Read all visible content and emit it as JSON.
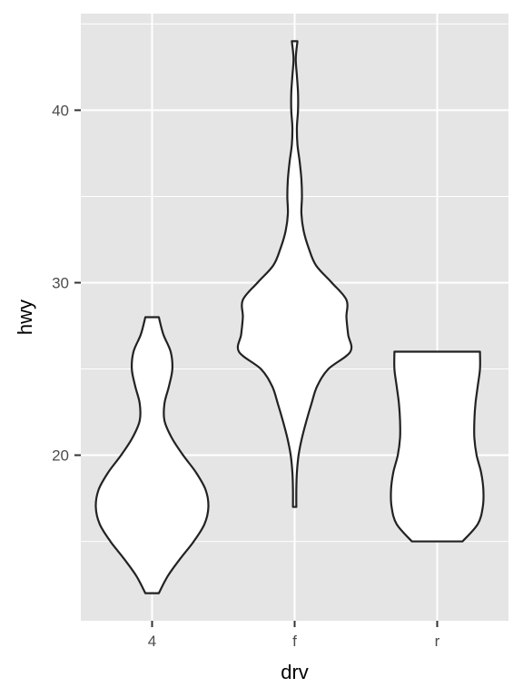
{
  "chart_data": {
    "type": "violin",
    "xlabel": "drv",
    "ylabel": "hwy",
    "categories": [
      "4",
      "f",
      "r"
    ],
    "ylim": [
      10.4,
      45.6
    ],
    "y_ticks": [
      20,
      30,
      40
    ],
    "y_minor_ticks": [
      15,
      25,
      35,
      45
    ],
    "grid": true,
    "panel_background": "#e5e5e5",
    "grid_color": "#ffffff",
    "violin_fill": "#ffffff",
    "violin_stroke": "#222222",
    "series": [
      {
        "category": "4",
        "y_range": [
          12,
          28
        ],
        "density_profile": [
          [
            12,
            0.12
          ],
          [
            13,
            0.28
          ],
          [
            14,
            0.5
          ],
          [
            15,
            0.74
          ],
          [
            16,
            0.93
          ],
          [
            17,
            1.0
          ],
          [
            18,
            0.95
          ],
          [
            19,
            0.78
          ],
          [
            20,
            0.55
          ],
          [
            21,
            0.35
          ],
          [
            22,
            0.22
          ],
          [
            23,
            0.22
          ],
          [
            24,
            0.3
          ],
          [
            25,
            0.36
          ],
          [
            26,
            0.33
          ],
          [
            27,
            0.2
          ],
          [
            28,
            0.12
          ]
        ]
      },
      {
        "category": "f",
        "y_range": [
          17,
          44
        ],
        "density_profile": [
          [
            17,
            0.03
          ],
          [
            18,
            0.03
          ],
          [
            19,
            0.04
          ],
          [
            20,
            0.07
          ],
          [
            21,
            0.13
          ],
          [
            22,
            0.21
          ],
          [
            23,
            0.3
          ],
          [
            24,
            0.4
          ],
          [
            25,
            0.6
          ],
          [
            26,
            0.99
          ],
          [
            27,
            0.95
          ],
          [
            28,
            0.92
          ],
          [
            29,
            0.92
          ],
          [
            30,
            0.66
          ],
          [
            31,
            0.38
          ],
          [
            32,
            0.25
          ],
          [
            33,
            0.16
          ],
          [
            34,
            0.12
          ],
          [
            35,
            0.13
          ],
          [
            36,
            0.12
          ],
          [
            37,
            0.09
          ],
          [
            38,
            0.05
          ],
          [
            39,
            0.04
          ],
          [
            40,
            0.06
          ],
          [
            41,
            0.06
          ],
          [
            42,
            0.04
          ],
          [
            43,
            0.02
          ],
          [
            44,
            0.05
          ]
        ]
      },
      {
        "category": "r",
        "y_range": [
          15,
          26
        ],
        "density_profile": [
          [
            15,
            0.45
          ],
          [
            16,
            0.72
          ],
          [
            17,
            0.81
          ],
          [
            18,
            0.82
          ],
          [
            19,
            0.78
          ],
          [
            20,
            0.7
          ],
          [
            21,
            0.66
          ],
          [
            22,
            0.66
          ],
          [
            23,
            0.68
          ],
          [
            24,
            0.72
          ],
          [
            25,
            0.76
          ],
          [
            26,
            0.76
          ]
        ]
      }
    ]
  }
}
